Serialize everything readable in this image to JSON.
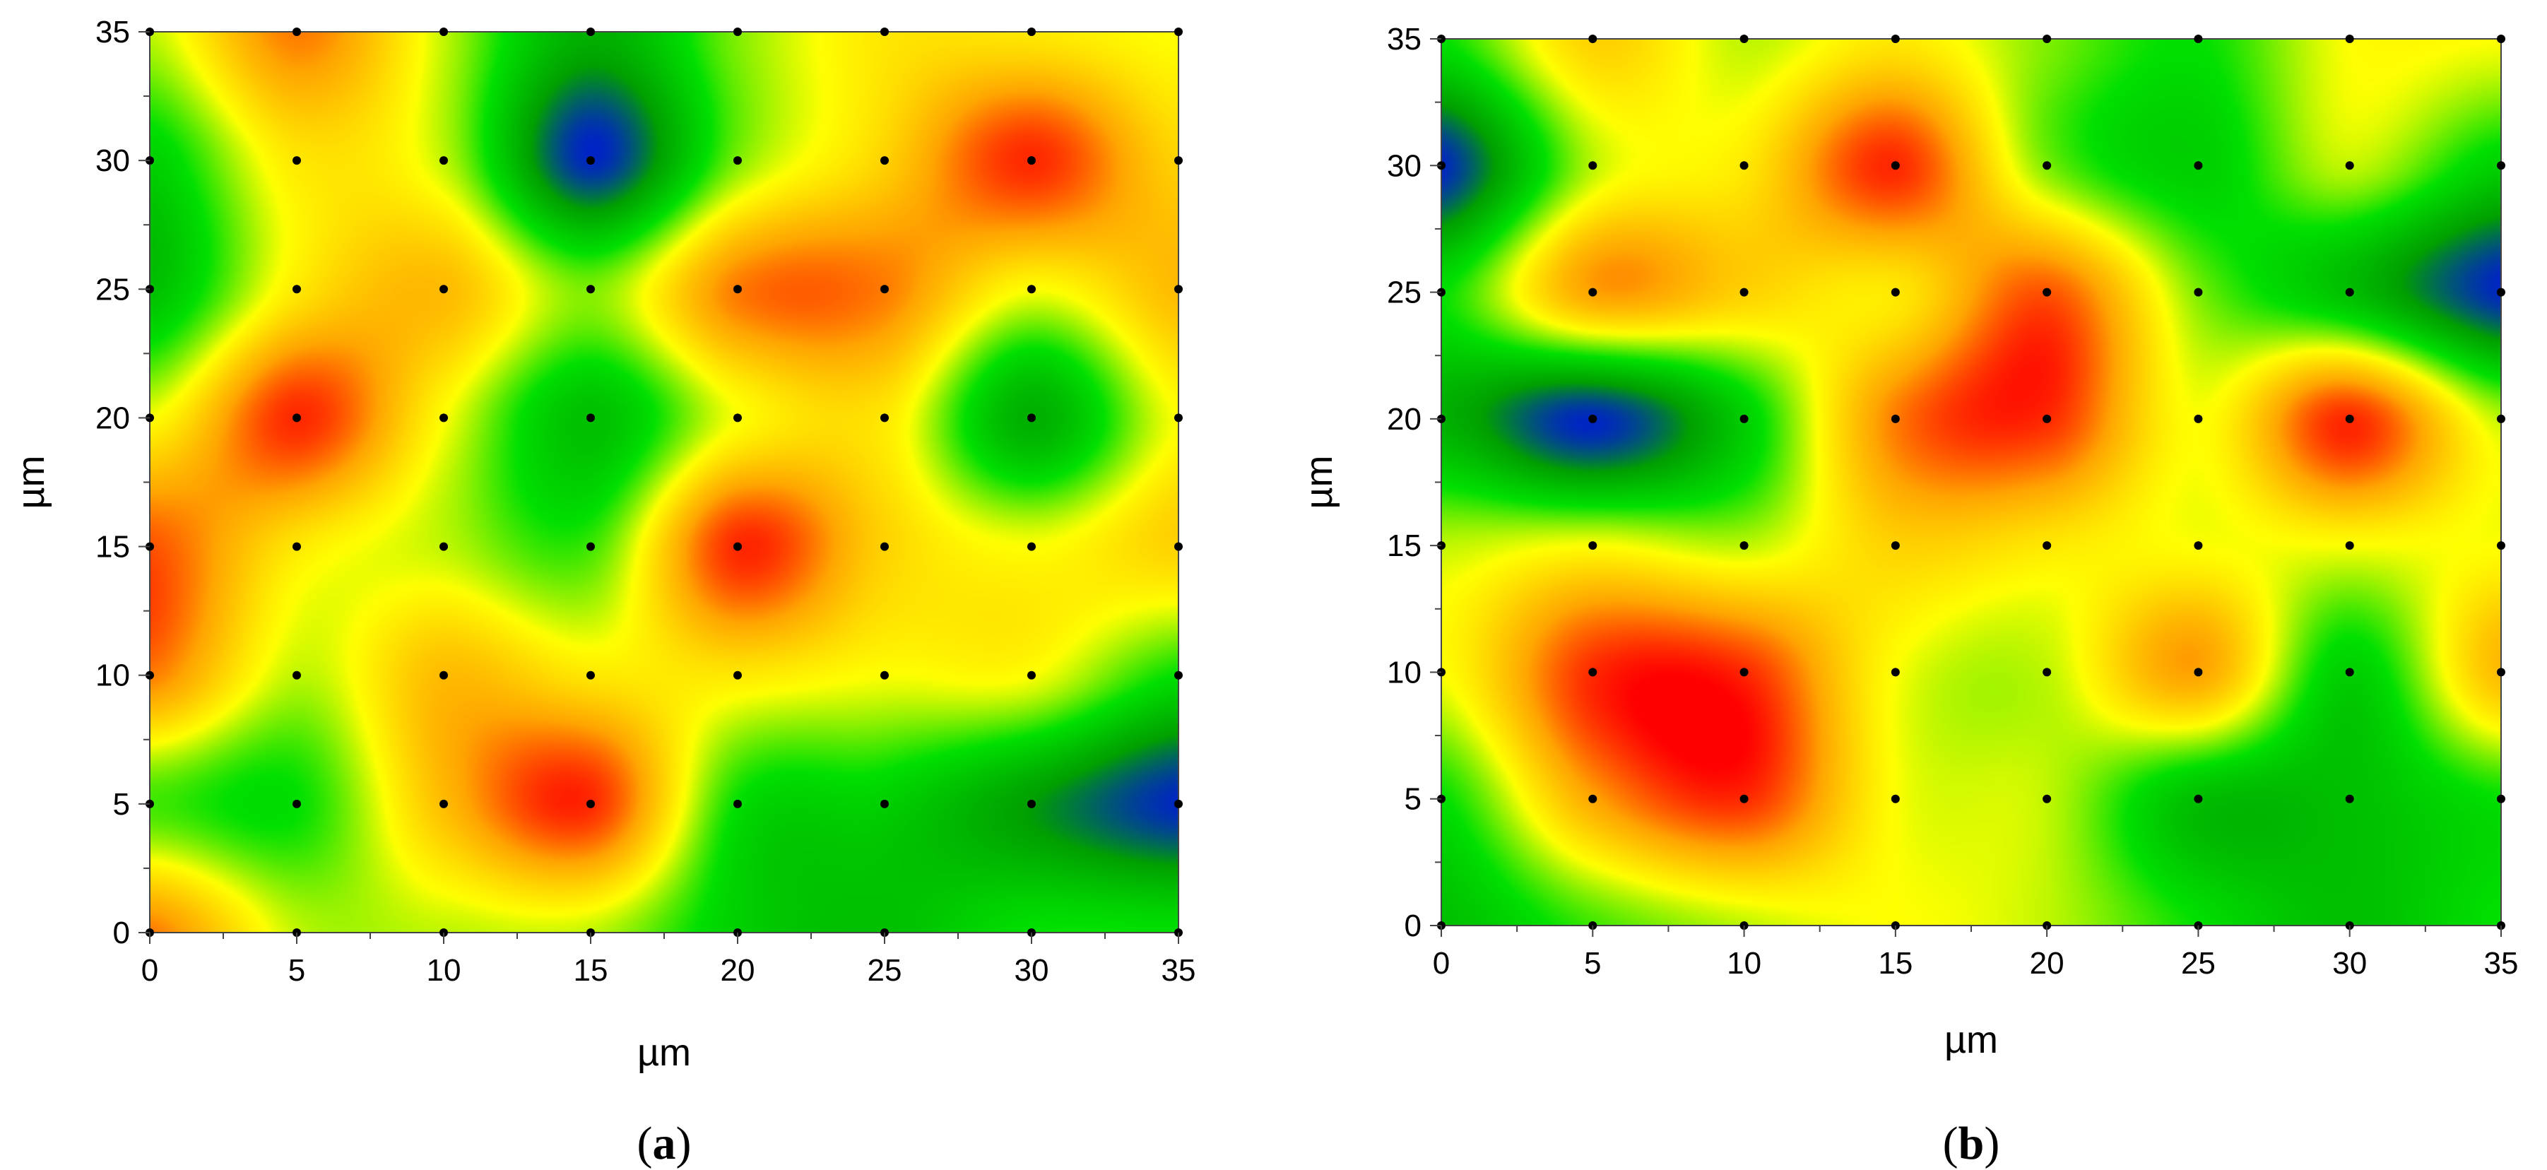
{
  "chart_data": [
    {
      "type": "heatmap",
      "panel": "a",
      "caption_open": "(",
      "caption_letter": "a",
      "caption_close": ")",
      "xlabel": "µm",
      "ylabel": "µm",
      "xlim": [
        0,
        35
      ],
      "ylim": [
        0,
        35
      ],
      "x_ticks": [
        0,
        5,
        10,
        15,
        20,
        25,
        30,
        35
      ],
      "y_ticks": [
        0,
        5,
        10,
        15,
        20,
        25,
        30,
        35
      ],
      "tick_labels": [
        "0",
        "5",
        "10",
        "15",
        "20",
        "25",
        "30",
        "35"
      ],
      "color_scale": [
        "#0000ff",
        "#00a000",
        "#00e000",
        "#ffff00",
        "#ffa500",
        "#ff0000"
      ],
      "grid_x": [
        0,
        5,
        10,
        15,
        20,
        25,
        30,
        35
      ],
      "grid_y": [
        0,
        5,
        10,
        15,
        20,
        25,
        30,
        35
      ],
      "z_rows_top_to_bottom": [
        [
          0.55,
          0.85,
          0.55,
          0.25,
          0.5,
          0.65,
          0.65,
          0.6
        ],
        [
          0.35,
          0.65,
          0.55,
          0.05,
          0.5,
          0.7,
          0.95,
          0.7
        ],
        [
          0.3,
          0.65,
          0.75,
          0.5,
          0.85,
          0.85,
          0.6,
          0.75
        ],
        [
          0.6,
          0.95,
          0.6,
          0.3,
          0.6,
          0.65,
          0.25,
          0.6
        ],
        [
          0.9,
          0.65,
          0.55,
          0.45,
          0.95,
          0.7,
          0.6,
          0.7
        ],
        [
          0.85,
          0.55,
          0.75,
          0.65,
          0.65,
          0.6,
          0.6,
          0.4
        ],
        [
          0.45,
          0.4,
          0.75,
          0.95,
          0.4,
          0.35,
          0.2,
          0.05
        ],
        [
          0.85,
          0.55,
          0.55,
          0.55,
          0.35,
          0.3,
          0.4,
          0.4
        ]
      ]
    },
    {
      "type": "heatmap",
      "panel": "b",
      "caption_open": "(",
      "caption_letter": "b",
      "caption_close": ")",
      "xlabel": "µm",
      "ylabel": "µm",
      "xlim": [
        0,
        35
      ],
      "ylim": [
        0,
        35
      ],
      "x_ticks": [
        0,
        5,
        10,
        15,
        20,
        25,
        30,
        35
      ],
      "y_ticks": [
        0,
        5,
        10,
        15,
        20,
        25,
        30,
        35
      ],
      "tick_labels": [
        "0",
        "5",
        "10",
        "15",
        "20",
        "25",
        "30",
        "35"
      ],
      "color_scale": [
        "#0000ff",
        "#00a000",
        "#00e000",
        "#ffff00",
        "#ffa500",
        "#ff0000"
      ],
      "grid_x": [
        0,
        5,
        10,
        15,
        20,
        25,
        30,
        35
      ],
      "grid_y": [
        0,
        5,
        10,
        15,
        20,
        25,
        30,
        35
      ],
      "z_rows_top_to_bottom": [
        [
          0.4,
          0.7,
          0.55,
          0.65,
          0.5,
          0.4,
          0.6,
          0.6
        ],
        [
          0.05,
          0.55,
          0.65,
          0.95,
          0.5,
          0.35,
          0.55,
          0.35
        ],
        [
          0.4,
          0.8,
          0.7,
          0.65,
          0.9,
          0.5,
          0.3,
          0.05
        ],
        [
          0.25,
          0.05,
          0.35,
          0.85,
          0.95,
          0.6,
          0.95,
          0.55
        ],
        [
          0.55,
          0.6,
          0.55,
          0.7,
          0.65,
          0.6,
          0.6,
          0.6
        ],
        [
          0.6,
          0.95,
          0.95,
          0.6,
          0.55,
          0.8,
          0.35,
          0.75
        ],
        [
          0.4,
          0.8,
          0.95,
          0.6,
          0.55,
          0.3,
          0.3,
          0.4
        ],
        [
          0.3,
          0.45,
          0.55,
          0.6,
          0.55,
          0.4,
          0.3,
          0.4
        ]
      ]
    }
  ]
}
